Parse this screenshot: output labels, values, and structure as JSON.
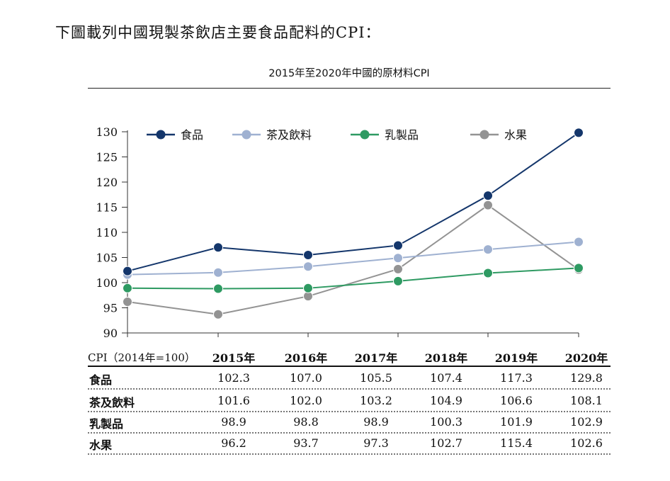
{
  "intro_text": "下圖載列中國現製茶飲店主要食品配料的CPI：",
  "chart_data": {
    "type": "line",
    "title": "2015年至2020年中國的原材料CPI",
    "categories": [
      "2015年",
      "2016年",
      "2017年",
      "2018年",
      "2019年",
      "2020年"
    ],
    "ylim": [
      90,
      130
    ],
    "yticks": [
      90,
      95,
      100,
      105,
      110,
      115,
      120,
      125,
      130
    ],
    "legend_position": "top",
    "grid": false,
    "series": [
      {
        "name": "食品",
        "color": "#14366b",
        "values": [
          102.3,
          107.0,
          105.5,
          107.4,
          117.3,
          129.8
        ]
      },
      {
        "name": "茶及飲料",
        "color": "#9fb1d1",
        "values": [
          101.6,
          102.0,
          103.2,
          104.9,
          106.6,
          108.1
        ]
      },
      {
        "name": "乳製品",
        "color": "#2e9a62",
        "values": [
          98.9,
          98.8,
          98.9,
          100.3,
          101.9,
          102.9
        ]
      },
      {
        "name": "水果",
        "color": "#939393",
        "values": [
          96.2,
          93.7,
          97.3,
          102.7,
          115.4,
          102.6
        ]
      }
    ]
  },
  "table": {
    "caption": "CPI（2014年=100）",
    "columns": [
      "2015年",
      "2016年",
      "2017年",
      "2018年",
      "2019年",
      "2020年"
    ],
    "rows": [
      {
        "label": "食品",
        "values": [
          "102.3",
          "107.0",
          "105.5",
          "107.4",
          "117.3",
          "129.8"
        ]
      },
      {
        "label": "茶及飲料",
        "values": [
          "101.6",
          "102.0",
          "103.2",
          "104.9",
          "106.6",
          "108.1"
        ]
      },
      {
        "label": "乳製品",
        "values": [
          "98.9",
          "98.8",
          "98.9",
          "100.3",
          "101.9",
          "102.9"
        ]
      },
      {
        "label": "水果",
        "values": [
          "96.2",
          "93.7",
          "97.3",
          "102.7",
          "115.4",
          "102.6"
        ]
      }
    ]
  }
}
